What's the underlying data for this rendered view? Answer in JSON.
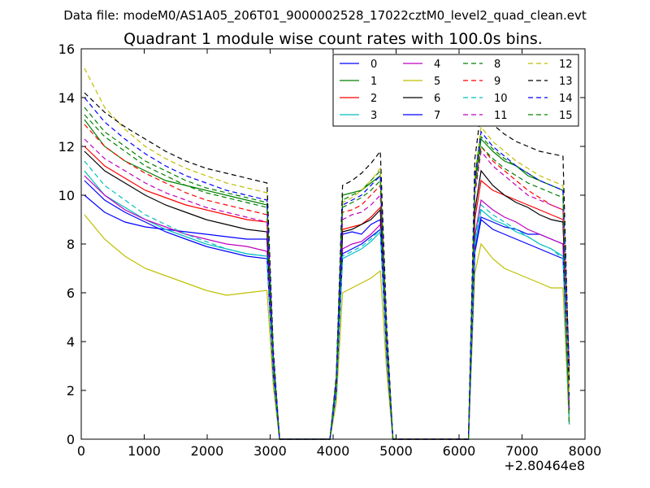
{
  "figure": {
    "suptitle": "Data file: modeM0/AS1A05_206T01_9000002528_17022cztM0_level2_quad_clean.evt"
  },
  "chart_data": {
    "type": "line",
    "title": "Quadrant 1 module wise count rates with 100.0s bins.",
    "xlabel": "",
    "ylabel": "",
    "x_offset_label": "+2.80464e8",
    "xlim": [
      0,
      8000
    ],
    "ylim": [
      0,
      16
    ],
    "xticks": [
      0,
      1000,
      2000,
      3000,
      4000,
      5000,
      6000,
      7000,
      8000
    ],
    "yticks": [
      0,
      2,
      4,
      6,
      8,
      10,
      12,
      14,
      16
    ],
    "grid": false,
    "legend_position": "top-right",
    "legend_columns": 4,
    "x_segments": [
      [
        50,
        2950
      ],
      [
        4150,
        4750
      ],
      [
        6350,
        7650
      ]
    ],
    "gap_x_points": [
      3050,
      3150,
      3250,
      3500,
      3750,
      3950,
      4050,
      4850,
      4950,
      5050,
      5500,
      6000,
      6150,
      6250,
      7750
    ],
    "series": [
      {
        "name": "0",
        "color": "#0000ff",
        "dashed": false,
        "seg1": [
          10.0,
          9.3,
          8.9,
          8.7,
          8.6,
          8.5,
          8.4,
          8.3,
          8.2,
          8.2
        ],
        "seg2": [
          8.4,
          8.5,
          8.4,
          8.8,
          9.0
        ],
        "seg3": [
          9.1,
          8.9,
          8.7,
          8.6,
          8.4,
          8.4,
          8.2,
          8.0
        ]
      },
      {
        "name": "1",
        "color": "#008000",
        "dashed": false,
        "seg1": [
          13.1,
          12.0,
          11.4,
          11.0,
          10.6,
          10.4,
          10.2,
          10.0,
          9.8,
          9.6
        ],
        "seg2": [
          10.0,
          10.1,
          10.2,
          10.5,
          10.8
        ],
        "seg3": [
          12.3,
          11.8,
          11.4,
          11.2,
          10.8,
          10.6,
          10.4,
          10.2
        ]
      },
      {
        "name": "2",
        "color": "#ff0000",
        "dashed": false,
        "seg1": [
          12.0,
          11.2,
          10.7,
          10.2,
          9.9,
          9.6,
          9.4,
          9.2,
          9.0,
          8.9
        ],
        "seg2": [
          8.6,
          8.7,
          8.8,
          9.1,
          9.5
        ],
        "seg3": [
          10.6,
          10.2,
          10.0,
          9.8,
          9.6,
          9.4,
          9.2,
          9.0
        ]
      },
      {
        "name": "3",
        "color": "#00bfbf",
        "dashed": false,
        "seg1": [
          11.0,
          10.0,
          9.5,
          9.0,
          8.6,
          8.3,
          8.0,
          7.8,
          7.6,
          7.5
        ],
        "seg2": [
          7.4,
          7.6,
          7.8,
          8.1,
          8.5
        ],
        "seg3": [
          9.4,
          9.0,
          8.8,
          8.5,
          8.3,
          8.0,
          7.8,
          7.5
        ]
      },
      {
        "name": "4",
        "color": "#bf00bf",
        "dashed": false,
        "seg1": [
          10.8,
          10.0,
          9.4,
          9.0,
          8.7,
          8.4,
          8.2,
          8.0,
          7.9,
          7.7
        ],
        "seg2": [
          7.8,
          8.0,
          8.1,
          8.4,
          8.8
        ],
        "seg3": [
          9.8,
          9.4,
          9.1,
          8.9,
          8.6,
          8.4,
          8.2,
          8.0
        ]
      },
      {
        "name": "5",
        "color": "#bfbf00",
        "dashed": false,
        "seg1": [
          9.2,
          8.2,
          7.5,
          7.0,
          6.7,
          6.4,
          6.1,
          5.9,
          6.0,
          6.1
        ],
        "seg2": [
          6.0,
          6.2,
          6.4,
          6.6,
          6.9
        ],
        "seg3": [
          8.0,
          7.4,
          7.0,
          6.8,
          6.6,
          6.4,
          6.2,
          6.2
        ]
      },
      {
        "name": "6",
        "color": "#000000",
        "dashed": false,
        "seg1": [
          11.8,
          11.0,
          10.5,
          10.0,
          9.6,
          9.3,
          9.0,
          8.8,
          8.6,
          8.5
        ],
        "seg2": [
          8.5,
          8.6,
          8.8,
          9.0,
          9.4
        ],
        "seg3": [
          11.0,
          10.4,
          10.0,
          9.7,
          9.5,
          9.2,
          9.0,
          8.9
        ]
      },
      {
        "name": "7",
        "color": "#0000ff",
        "dashed": false,
        "seg1": [
          10.6,
          9.8,
          9.3,
          8.9,
          8.5,
          8.2,
          7.9,
          7.7,
          7.5,
          7.4
        ],
        "seg2": [
          7.6,
          7.8,
          8.0,
          8.3,
          8.6
        ],
        "seg3": [
          9.0,
          8.6,
          8.4,
          8.2,
          8.0,
          7.8,
          7.6,
          7.4
        ]
      },
      {
        "name": "8",
        "color": "#008000",
        "dashed": true,
        "seg1": [
          13.6,
          12.6,
          12.0,
          11.4,
          11.0,
          10.6,
          10.3,
          10.1,
          9.9,
          9.7
        ],
        "seg2": [
          9.8,
          10.0,
          10.2,
          10.6,
          11.0
        ],
        "seg3": [
          12.4,
          11.9,
          11.5,
          11.2,
          10.9,
          10.6,
          10.4,
          10.2
        ]
      },
      {
        "name": "9",
        "color": "#ff0000",
        "dashed": true,
        "seg1": [
          12.9,
          12.0,
          11.4,
          10.9,
          10.5,
          10.1,
          9.8,
          9.6,
          9.4,
          9.2
        ],
        "seg2": [
          9.3,
          9.4,
          9.6,
          10.0,
          10.4
        ],
        "seg3": [
          12.0,
          11.4,
          11.0,
          10.6,
          10.2,
          9.9,
          9.6,
          9.4
        ]
      },
      {
        "name": "10",
        "color": "#00bfbf",
        "dashed": true,
        "seg1": [
          11.4,
          10.4,
          9.8,
          9.2,
          8.8,
          8.4,
          8.1,
          7.8,
          7.6,
          7.5
        ],
        "seg2": [
          7.5,
          7.7,
          7.9,
          8.2,
          8.6
        ],
        "seg3": [
          9.6,
          9.2,
          8.9,
          8.6,
          8.3,
          8.0,
          7.8,
          7.4
        ]
      },
      {
        "name": "11",
        "color": "#bf00bf",
        "dashed": true,
        "seg1": [
          12.3,
          11.5,
          11.0,
          10.5,
          10.1,
          9.8,
          9.5,
          9.3,
          9.1,
          8.9
        ],
        "seg2": [
          9.0,
          9.2,
          9.3,
          9.6,
          10.0
        ],
        "seg3": [
          11.8,
          11.2,
          10.8,
          10.4,
          10.0,
          9.8,
          9.6,
          9.4
        ]
      },
      {
        "name": "12",
        "color": "#bfbf00",
        "dashed": true,
        "seg1": [
          15.2,
          13.6,
          12.7,
          12.0,
          11.5,
          11.1,
          10.8,
          10.5,
          10.3,
          10.1
        ],
        "seg2": [
          9.7,
          9.9,
          10.2,
          10.6,
          11.1
        ],
        "seg3": [
          12.8,
          12.2,
          11.8,
          11.4,
          11.1,
          10.8,
          10.6,
          10.4
        ]
      },
      {
        "name": "13",
        "color": "#000000",
        "dashed": true,
        "seg1": [
          14.2,
          13.4,
          12.8,
          12.3,
          11.8,
          11.4,
          11.1,
          10.9,
          10.7,
          10.5
        ],
        "seg2": [
          10.4,
          10.6,
          10.9,
          11.3,
          11.8
        ],
        "seg3": [
          13.5,
          12.9,
          12.5,
          12.2,
          12.0,
          11.8,
          11.7,
          11.6
        ]
      },
      {
        "name": "14",
        "color": "#0000ff",
        "dashed": true,
        "seg1": [
          14.0,
          13.0,
          12.3,
          11.7,
          11.2,
          10.8,
          10.5,
          10.2,
          10.0,
          9.8
        ],
        "seg2": [
          9.6,
          9.8,
          10.0,
          10.4,
          10.8
        ],
        "seg3": [
          12.6,
          12.0,
          11.6,
          11.2,
          10.9,
          10.6,
          10.4,
          10.2
        ]
      },
      {
        "name": "15",
        "color": "#008000",
        "dashed": true,
        "seg1": [
          13.3,
          12.4,
          11.8,
          11.2,
          10.8,
          10.4,
          10.1,
          9.9,
          9.7,
          9.5
        ],
        "seg2": [
          9.5,
          9.7,
          9.9,
          10.2,
          10.6
        ],
        "seg3": [
          12.0,
          11.5,
          11.1,
          10.8,
          10.5,
          10.3,
          10.1,
          9.9
        ]
      }
    ]
  }
}
